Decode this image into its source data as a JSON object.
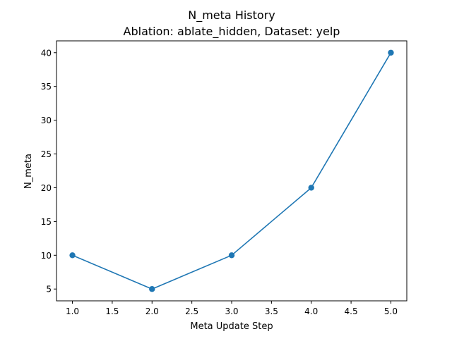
{
  "chart_data": {
    "type": "line",
    "title": "N_meta History",
    "subtitle": "Ablation: ablate_hidden, Dataset: yelp",
    "xlabel": "Meta Update Step",
    "ylabel": "N_meta",
    "x": [
      1.0,
      2.0,
      3.0,
      4.0,
      5.0
    ],
    "series": [
      {
        "values": [
          10,
          5,
          10,
          20,
          40
        ],
        "color": "#1f77b4",
        "marker": "circle"
      }
    ],
    "xlim": [
      0.8,
      5.2
    ],
    "ylim": [
      3.25,
      41.75
    ],
    "xticks": [
      1.0,
      1.5,
      2.0,
      2.5,
      3.0,
      3.5,
      4.0,
      4.5,
      5.0
    ],
    "xtick_labels": [
      "1.0",
      "1.5",
      "2.0",
      "2.5",
      "3.0",
      "3.5",
      "4.0",
      "4.5",
      "5.0"
    ],
    "yticks": [
      5,
      10,
      15,
      20,
      25,
      30,
      35,
      40
    ],
    "ytick_labels": [
      "5",
      "10",
      "15",
      "20",
      "25",
      "30",
      "35",
      "40"
    ],
    "grid": false,
    "legend": "none"
  }
}
